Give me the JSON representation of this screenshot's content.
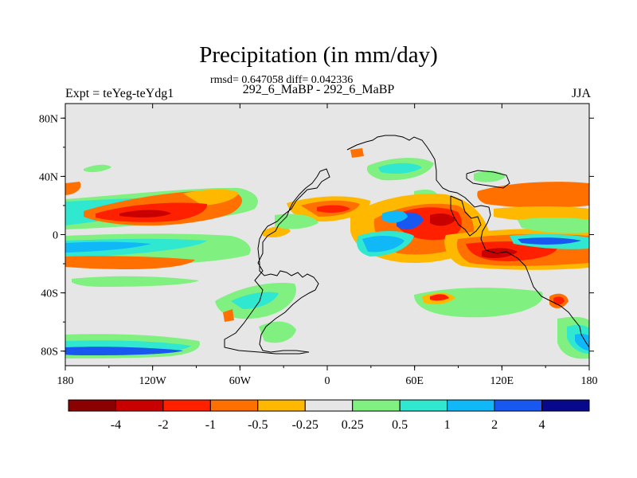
{
  "title": "Precipitation (in mm/day)",
  "stats": "rmsd= 0.647058 diff= 0.042336",
  "left_label": "Expt = teYeg-teYdg1",
  "center_label": "292_6_MaBP - 292_6_MaBP",
  "right_label": "JJA",
  "map": {
    "lon_ticks": [
      "180",
      "120W",
      "60W",
      "0",
      "60E",
      "120E",
      "180"
    ],
    "lat_ticks": [
      "80N",
      "40N",
      "0",
      "40S",
      "80S"
    ],
    "background_color": "#e6e6e6"
  },
  "colorbar": {
    "colors": [
      "#8b0000",
      "#c80000",
      "#ff2000",
      "#ff7000",
      "#ffb800",
      "#e6e6e6",
      "#80f080",
      "#30e8d0",
      "#10b8f8",
      "#1858f0",
      "#08088c"
    ],
    "labels": [
      "-4",
      "-2",
      "-1",
      "-0.5",
      "-0.25",
      "0.25",
      "0.5",
      "1",
      "2",
      "4"
    ]
  }
}
